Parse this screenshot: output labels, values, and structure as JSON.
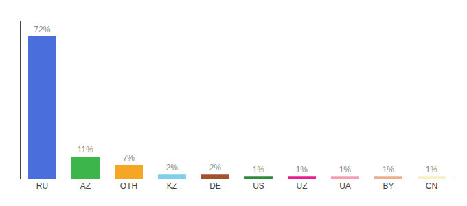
{
  "chart_data": {
    "type": "bar",
    "categories": [
      "RU",
      "AZ",
      "OTH",
      "KZ",
      "DE",
      "US",
      "UZ",
      "UA",
      "BY",
      "CN"
    ],
    "values": [
      72,
      11,
      7,
      2,
      2,
      1,
      1,
      1,
      1,
      1
    ],
    "value_labels": [
      "72%",
      "11%",
      "7%",
      "2%",
      "2%",
      "1%",
      "1%",
      "1%",
      "1%",
      "1%"
    ],
    "colors": [
      "#4a6fdc",
      "#3cb54a",
      "#f5a623",
      "#7ecfed",
      "#a0522d",
      "#2e8b3e",
      "#e91e8c",
      "#f4a0b0",
      "#e8b090",
      "#f5f0c8"
    ],
    "ylim": [
      0,
      80
    ],
    "yticks": [],
    "grid": false,
    "data_labels": true,
    "tick_labels": "x"
  }
}
